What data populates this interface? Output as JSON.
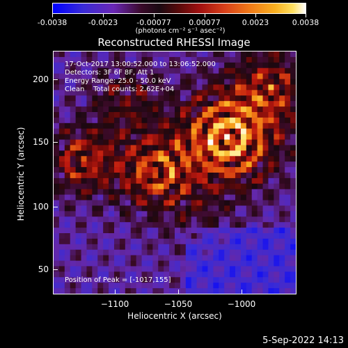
{
  "colorbar": {
    "ticks": [
      "-0.0038",
      "-0.0023",
      "-0.00077",
      "0.00077",
      "0.0023",
      "0.0038"
    ],
    "units": "(photons cm⁻² s⁻¹ asec⁻²)",
    "range": [
      -0.0038,
      0.0038
    ],
    "colors": {
      "min": "#0000ff",
      "mid": "#1a0a12",
      "max": "#ffffff"
    }
  },
  "title": "Reconstructed RHESSI Image",
  "annotations": {
    "time_range": "17-Oct-2017 13:00:52.000 to 13:06:52.000",
    "detectors": "Detectors: 3F 6F 8F, Att 1",
    "energy_range": "Energy Range: 25.0 - 50.0 keV",
    "method_counts": "Clean    Total counts: 2.62E+04",
    "peak": "Position of Peak = [-1017,155]"
  },
  "axes": {
    "xlabel": "Heliocentric X (arcsec)",
    "ylabel": "Heliocentric Y (arcsec)",
    "x_ticks": [
      "−1100",
      "−1050",
      "−1000"
    ],
    "y_ticks": [
      "200",
      "150",
      "100",
      "50"
    ],
    "x_range": [
      -1150,
      -965
    ],
    "y_range": [
      30,
      225
    ]
  },
  "footer": {
    "date": "5-Sep-2022 14:13"
  }
}
